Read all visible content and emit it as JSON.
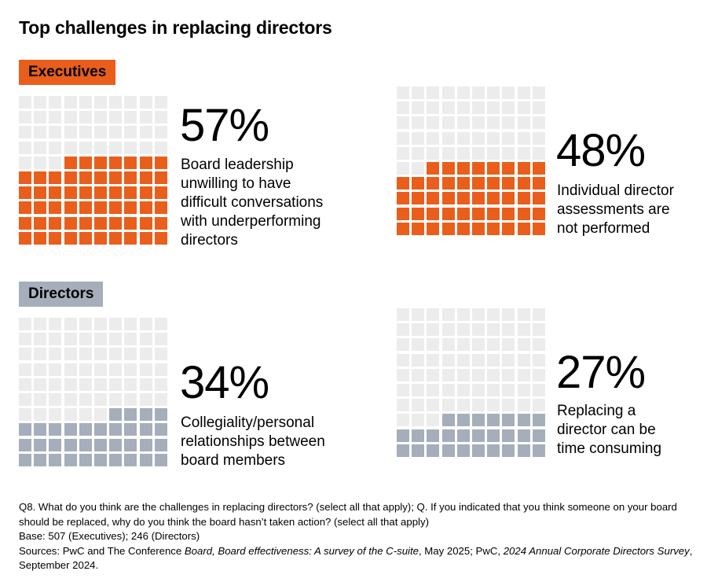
{
  "title": "Top challenges in replacing directors",
  "colors": {
    "orange": "#ea5e1c",
    "grey_filled": "#a6aebb",
    "empty": "#ececec",
    "text_black": "#000000"
  },
  "groups": {
    "executives": {
      "label": "Executives"
    },
    "directors": {
      "label": "Directors"
    }
  },
  "chart_data": [
    {
      "type": "waffle",
      "group": "Executives",
      "value": 57,
      "value_label": "57%",
      "caption": "Board leadership unwilling to have difficult conversations with underperforming directors",
      "caption_lines": [
        "Board leadership",
        "unwilling to have",
        "difficult conversations",
        "with underperforming",
        "directors"
      ],
      "grid": "10x10",
      "filled_color": "orange"
    },
    {
      "type": "waffle",
      "group": "Executives",
      "value": 48,
      "value_label": "48%",
      "caption": "Individual director assessments are not performed",
      "caption_lines": [
        "Individual director",
        "assessments are",
        "not performed"
      ],
      "grid": "10x10",
      "filled_color": "orange"
    },
    {
      "type": "waffle",
      "group": "Directors",
      "value": 34,
      "value_label": "34%",
      "caption": "Collegiality/personal relationships between board members",
      "caption_lines": [
        "Collegiality/personal",
        "relationships between",
        "board members"
      ],
      "grid": "10x10",
      "filled_color": "grey"
    },
    {
      "type": "waffle",
      "group": "Directors",
      "value": 27,
      "value_label": "27%",
      "caption": "Replacing a director can be time consuming",
      "caption_lines": [
        "Replacing a",
        "director can be",
        "time consuming"
      ],
      "grid": "10x10",
      "filled_color": "grey"
    }
  ],
  "footnotes": {
    "question": "Q8. What do you think are the challenges in replacing directors? (select all that apply); Q. If you indicated that you think someone on your board should be replaced, why do you think the board hasn’t taken action? (select all that apply)",
    "base": "Base: 507 (Executives); 246 (Directors)",
    "sources_prefix": "Sources: PwC and The Conference ",
    "sources_italic_1": "Board, Board effectiveness: A survey of the C-suite",
    "sources_mid": ", May 2025; PwC, ",
    "sources_italic_2": "2024 Annual Corporate Directors Survey",
    "sources_suffix": ", September 2024."
  }
}
